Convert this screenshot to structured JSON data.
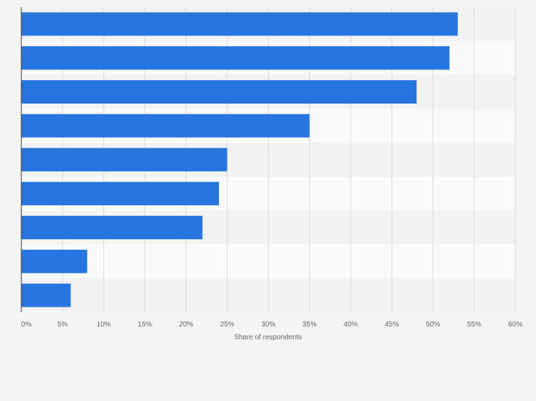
{
  "chart_data": {
    "type": "bar",
    "orientation": "horizontal",
    "categories": [
      "",
      "",
      "",
      "",
      "",
      "",
      "",
      "",
      ""
    ],
    "values": [
      53,
      52,
      48,
      35,
      25,
      24,
      22,
      8,
      6
    ],
    "xlabel": "Share of respondents",
    "xlim": [
      0,
      60
    ],
    "ticks": [
      0,
      5,
      10,
      15,
      20,
      25,
      30,
      35,
      40,
      45,
      50,
      55,
      60
    ],
    "tick_labels": [
      "0%",
      "5%",
      "10%",
      "15%",
      "20%",
      "25%",
      "30%",
      "35%",
      "40%",
      "45%",
      "50%",
      "55%",
      "60%"
    ],
    "grid": true,
    "bar_color": "#2876dd",
    "band_colors": [
      "#f3f3f3",
      "#fafafa"
    ],
    "grid_color": "#d8d8d8",
    "axis_color": "#333333",
    "text_color": "#666666"
  }
}
